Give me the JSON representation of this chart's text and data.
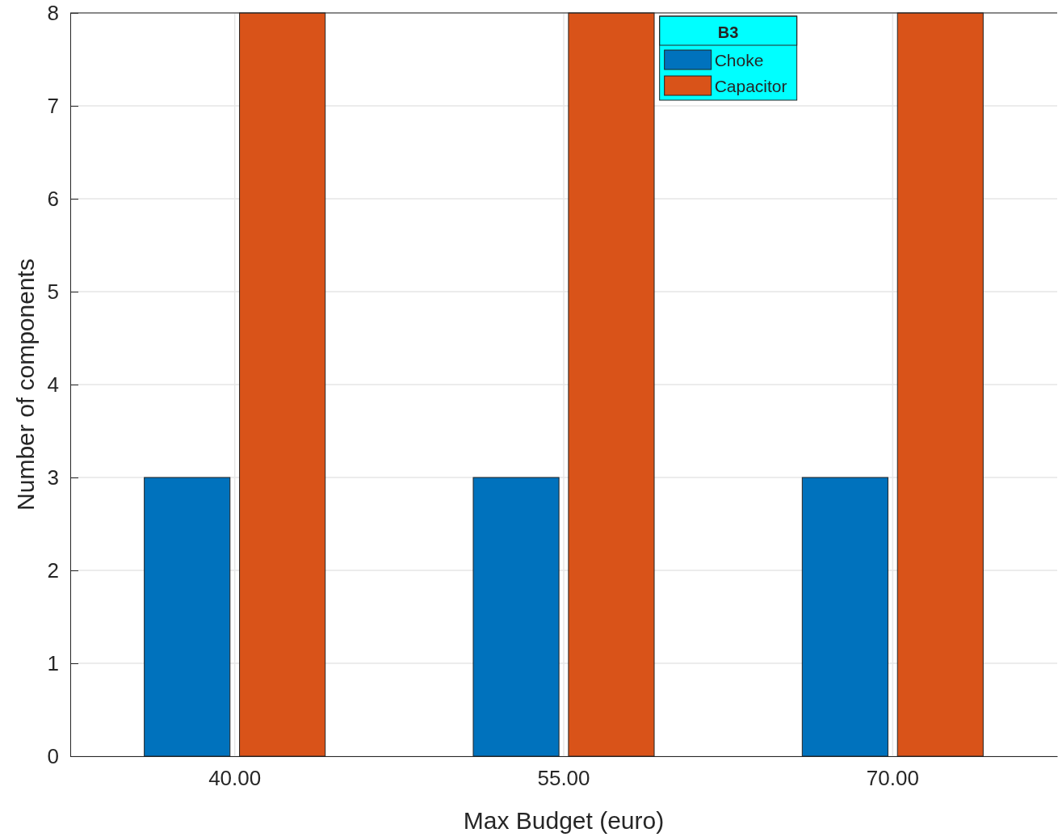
{
  "chart_data": {
    "type": "bar",
    "xlabel": "Max Budget (euro)",
    "ylabel": "Number of components",
    "legend_title": "B3",
    "categories": [
      "40.00",
      "55.00",
      "70.00"
    ],
    "series": [
      {
        "name": "Choke",
        "color": "#0072bd",
        "values": [
          3,
          3,
          3
        ]
      },
      {
        "name": "Capacitor",
        "color": "#d95319",
        "values": [
          8,
          8,
          8
        ]
      }
    ],
    "ylim": [
      0,
      8
    ],
    "yticks": [
      0,
      1,
      2,
      3,
      4,
      5,
      6,
      7,
      8
    ],
    "grid": true,
    "legend": "top right"
  }
}
